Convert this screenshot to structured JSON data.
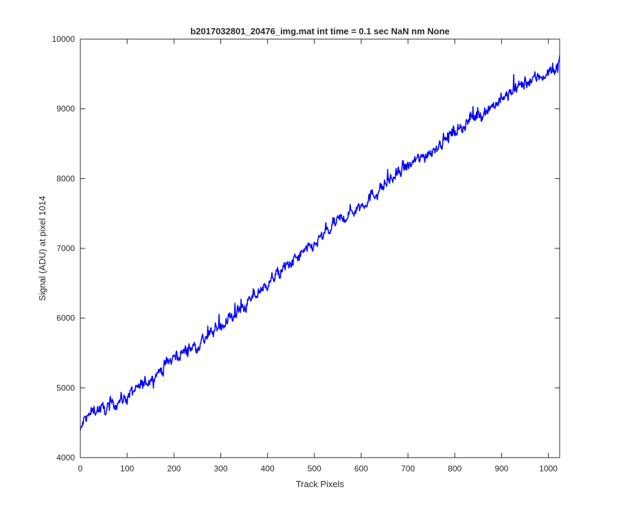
{
  "chart_data": {
    "type": "line",
    "title": "b2017032801_20476_img.mat int time = 0.1 sec  NaN nm None",
    "xlabel": "Track Pixels",
    "ylabel": "Signal (ADU) at pixel 1014",
    "xlim": [
      0,
      1024
    ],
    "ylim": [
      4000,
      10000
    ],
    "x_ticks": [
      0,
      100,
      200,
      300,
      400,
      500,
      600,
      700,
      800,
      900,
      1000
    ],
    "y_ticks": [
      4000,
      5000,
      6000,
      7000,
      8000,
      9000,
      10000
    ],
    "grid": false,
    "legend": "none",
    "series": [
      {
        "color": "#0000ff",
        "trend": {
          "start": [
            0,
            4400
          ],
          "end": [
            1024,
            9600
          ],
          "noise_amplitude": 90,
          "count": 1024
        },
        "x": [
          0,
          5,
          10,
          20,
          30,
          50,
          75,
          100,
          150,
          200,
          250,
          300,
          350,
          400,
          450,
          500,
          550,
          600,
          650,
          700,
          750,
          800,
          850,
          900,
          950,
          1000,
          1020,
          1024
        ],
        "values": [
          4350,
          4480,
          4560,
          4600,
          4700,
          4680,
          4790,
          4870,
          5130,
          5440,
          5620,
          5890,
          6160,
          6500,
          6790,
          7050,
          7380,
          7620,
          7910,
          8170,
          8400,
          8680,
          8910,
          9130,
          9370,
          9520,
          9600,
          9800
        ]
      }
    ]
  },
  "colors": {
    "line": "#0000ff",
    "axes": "#262626",
    "background": "#ffffff"
  }
}
